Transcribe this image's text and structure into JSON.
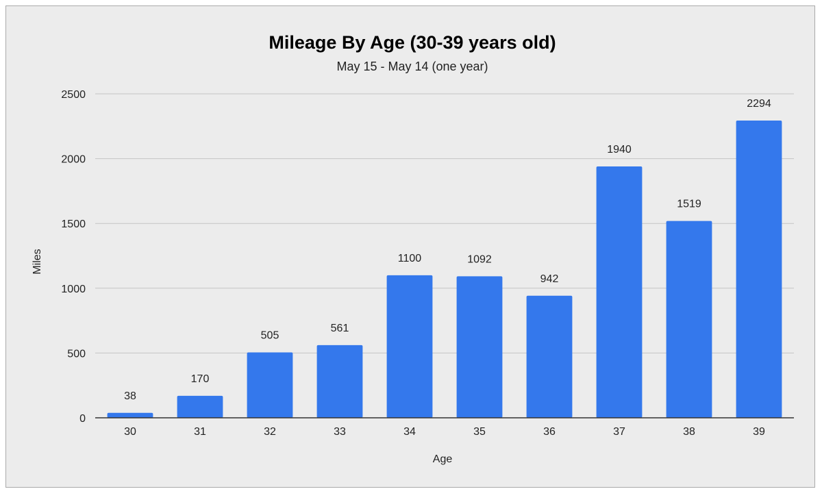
{
  "chart_data": {
    "type": "bar",
    "title": "Mileage By Age (30-39 years old)",
    "subtitle": "May 15 - May 14 (one year)",
    "xlabel": "Age",
    "ylabel": "Miles",
    "categories": [
      "30",
      "31",
      "32",
      "33",
      "34",
      "35",
      "36",
      "37",
      "38",
      "39"
    ],
    "values": [
      38,
      170,
      505,
      561,
      1100,
      1092,
      942,
      1940,
      1519,
      2294
    ],
    "data_labels": [
      "38",
      "170",
      "505",
      "561",
      "1100",
      "1092",
      "942",
      "1940",
      "1519",
      "2294"
    ],
    "yticks": [
      0,
      500,
      1000,
      1500,
      2000,
      2500
    ],
    "ytick_labels": [
      "0",
      "500",
      "1000",
      "1500",
      "2000",
      "2500"
    ],
    "ylim": [
      0,
      2500
    ],
    "grid": true,
    "legend": "none",
    "colors": {
      "bar": "#3478ec",
      "grid": "#c4c4c4",
      "axis": "#333333",
      "background": "#ececec"
    }
  }
}
